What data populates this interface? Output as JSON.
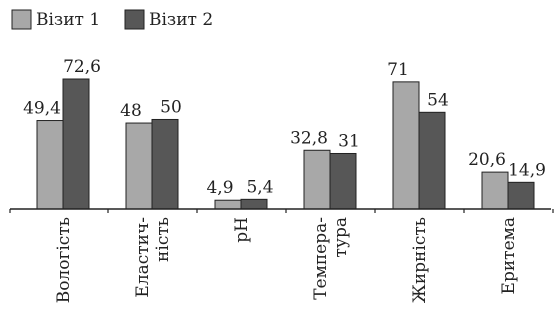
{
  "chart_data": {
    "type": "bar",
    "title": "",
    "xlabel": "",
    "ylabel": "",
    "categories": [
      "Вологість",
      "Еластич-ність",
      "pH",
      "Темпера-тура",
      "Жирність",
      "Еритема"
    ],
    "category_lines": [
      [
        "Вологість"
      ],
      [
        "Еластич-",
        "ність"
      ],
      [
        "pH"
      ],
      [
        "Темпера-",
        "тура"
      ],
      [
        "Жирність"
      ],
      [
        "Еритема"
      ]
    ],
    "series": [
      {
        "name": "Візит 1",
        "color": "#a8a8a8",
        "values": [
          49.4,
          48,
          4.9,
          32.8,
          71,
          20.6
        ],
        "labels": [
          "49,4",
          "48",
          "4,9",
          "32,8",
          "71",
          "20,6"
        ]
      },
      {
        "name": "Візит 2",
        "color": "#575757",
        "values": [
          72.6,
          50,
          5.4,
          31,
          54,
          14.9
        ],
        "labels": [
          "72,6",
          "50",
          "5,4",
          "31",
          "54",
          "14,9"
        ]
      }
    ],
    "ylim": [
      0,
      80
    ],
    "grid": false,
    "legend": "top-left"
  }
}
